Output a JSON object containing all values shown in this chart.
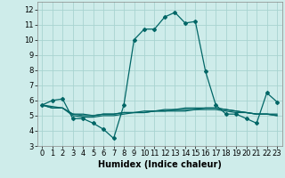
{
  "xlabel": "Humidex (Indice chaleur)",
  "background_color": "#ceecea",
  "grid_color": "#a8d4d0",
  "line_color": "#006666",
  "xlim": [
    -0.5,
    23.5
  ],
  "ylim": [
    3,
    12.5
  ],
  "yticks": [
    3,
    4,
    5,
    6,
    7,
    8,
    9,
    10,
    11,
    12
  ],
  "xticks": [
    0,
    1,
    2,
    3,
    4,
    5,
    6,
    7,
    8,
    9,
    10,
    11,
    12,
    13,
    14,
    15,
    16,
    17,
    18,
    19,
    20,
    21,
    22,
    23
  ],
  "series": [
    [
      5.7,
      6.0,
      6.1,
      4.8,
      4.8,
      4.5,
      4.1,
      3.5,
      5.7,
      10.0,
      10.7,
      10.7,
      11.5,
      11.8,
      11.1,
      11.2,
      7.9,
      5.7,
      5.1,
      5.1,
      4.8,
      4.5,
      6.5,
      5.9
    ],
    [
      5.7,
      5.5,
      5.5,
      5.1,
      5.1,
      5.0,
      5.1,
      5.1,
      5.2,
      5.2,
      5.2,
      5.3,
      5.3,
      5.3,
      5.3,
      5.4,
      5.4,
      5.4,
      5.3,
      5.2,
      5.2,
      5.1,
      5.1,
      5.1
    ],
    [
      5.7,
      5.5,
      5.5,
      5.0,
      4.9,
      4.9,
      5.0,
      5.0,
      5.1,
      5.2,
      5.2,
      5.3,
      5.3,
      5.4,
      5.4,
      5.4,
      5.5,
      5.5,
      5.4,
      5.3,
      5.2,
      5.1,
      5.1,
      5.0
    ],
    [
      5.7,
      5.6,
      5.5,
      5.1,
      5.0,
      5.0,
      5.1,
      5.1,
      5.2,
      5.2,
      5.3,
      5.3,
      5.4,
      5.4,
      5.5,
      5.5,
      5.5,
      5.5,
      5.4,
      5.3,
      5.2,
      5.1,
      5.1,
      5.0
    ]
  ],
  "marker": "D",
  "markersize": 2.0,
  "linewidth": 0.9,
  "fontsize_label": 7,
  "fontsize_tick": 6
}
